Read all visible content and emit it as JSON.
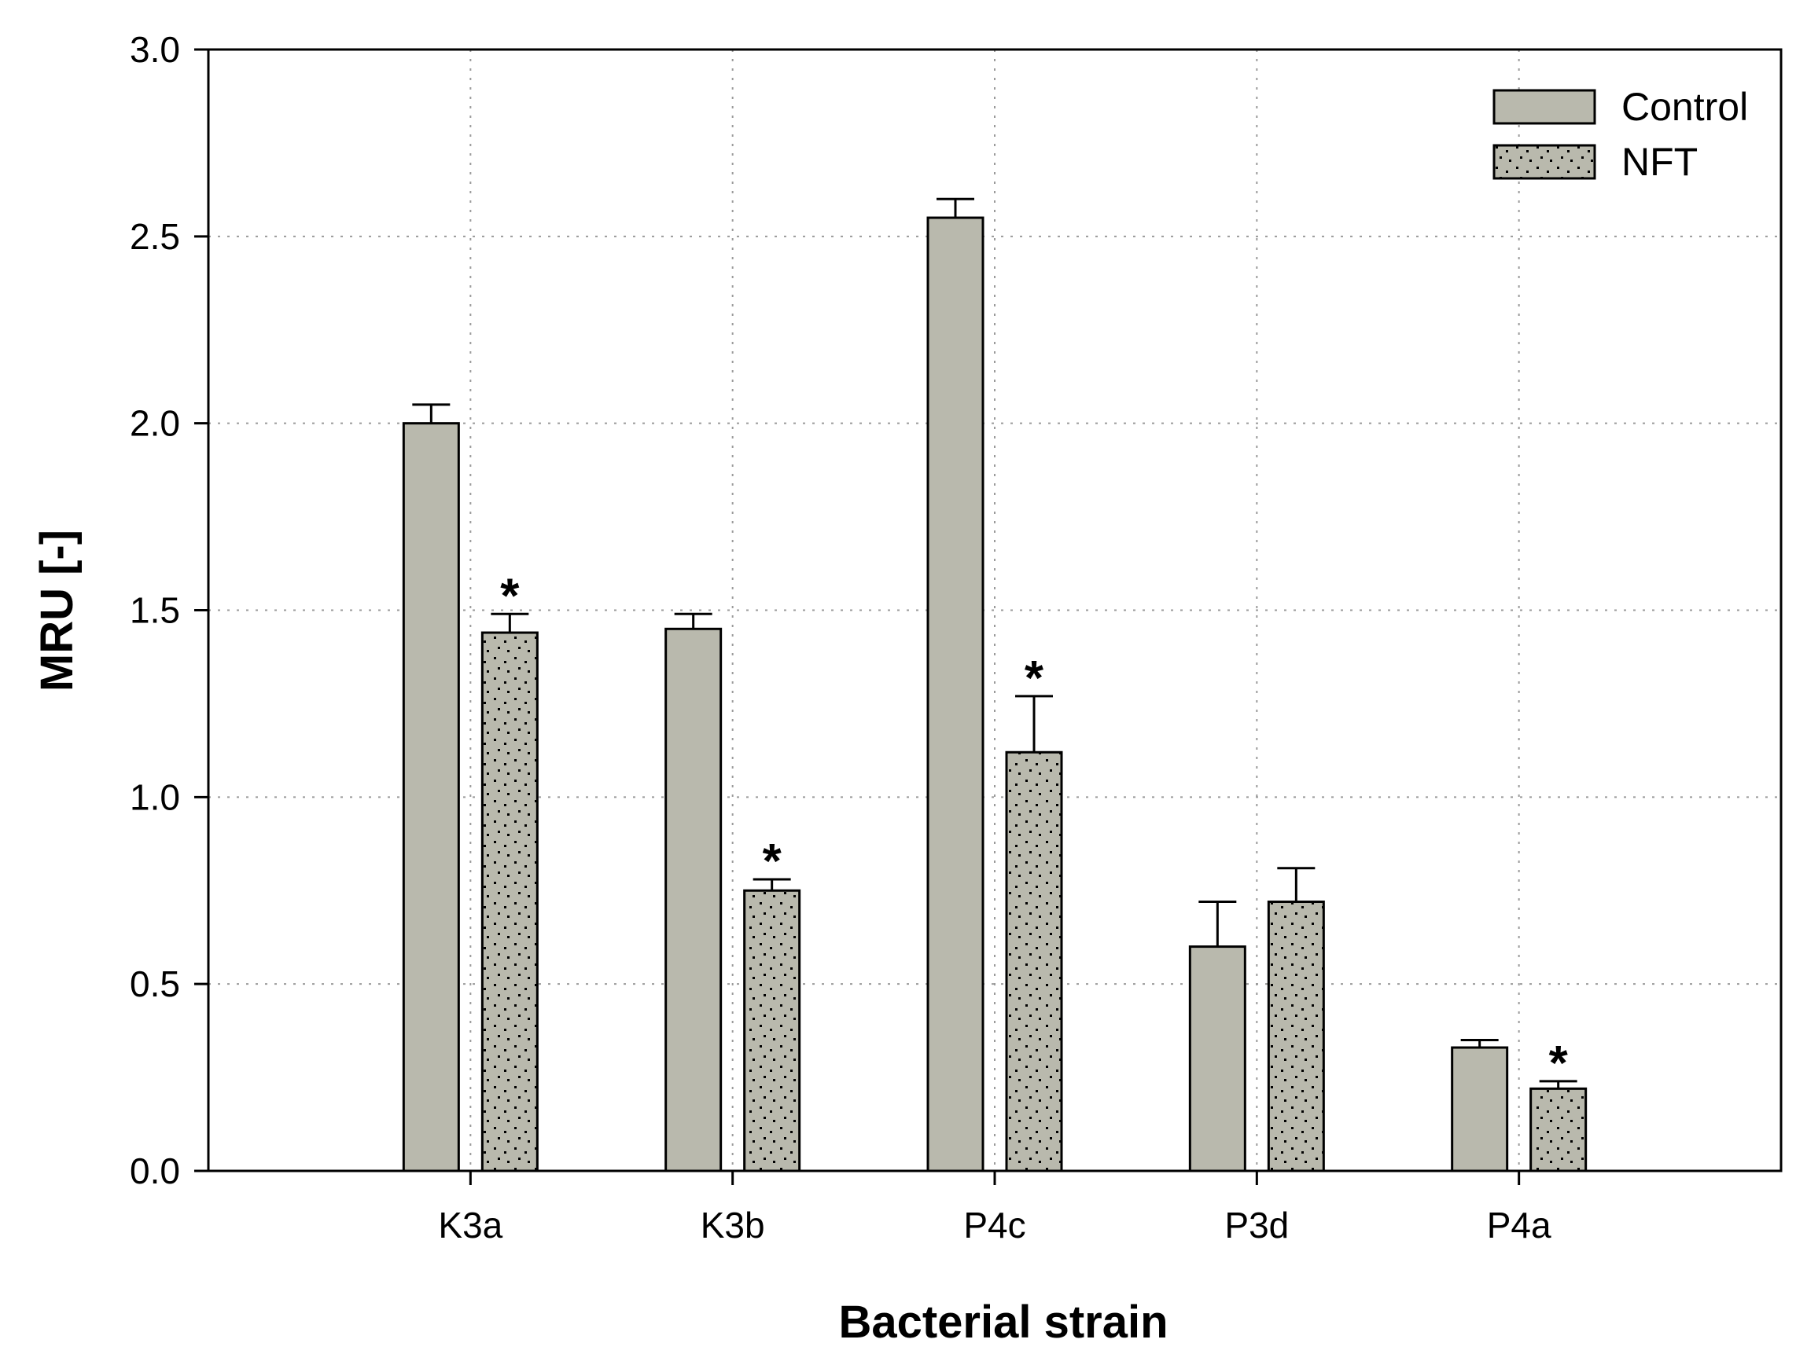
{
  "chart_data": {
    "type": "bar",
    "title": "",
    "xlabel": "Bacterial strain",
    "ylabel": "MRU [-]",
    "categories": [
      "K3a",
      "K3b",
      "P4c",
      "P3d",
      "P4a"
    ],
    "ylim": [
      0,
      3
    ],
    "yticks": [
      "0.0",
      "0.5",
      "1.0",
      "1.5",
      "2.0",
      "2.5",
      "3.0"
    ],
    "grid": true,
    "legend_position": "top-right",
    "series": [
      {
        "name": "Control",
        "values": [
          2.0,
          1.45,
          2.55,
          0.6,
          0.33
        ],
        "errors": [
          0.05,
          0.04,
          0.05,
          0.12,
          0.02
        ],
        "significant": [
          false,
          false,
          false,
          false,
          false
        ],
        "fill": "#b9b9ad",
        "pattern": "solid"
      },
      {
        "name": "NFT",
        "values": [
          1.44,
          0.75,
          1.12,
          0.72,
          0.22
        ],
        "errors": [
          0.05,
          0.03,
          0.15,
          0.09,
          0.02
        ],
        "significant": [
          true,
          true,
          true,
          false,
          true
        ],
        "fill": "#b9b9ad",
        "pattern": "dots"
      }
    ],
    "significance_marker": "*"
  }
}
